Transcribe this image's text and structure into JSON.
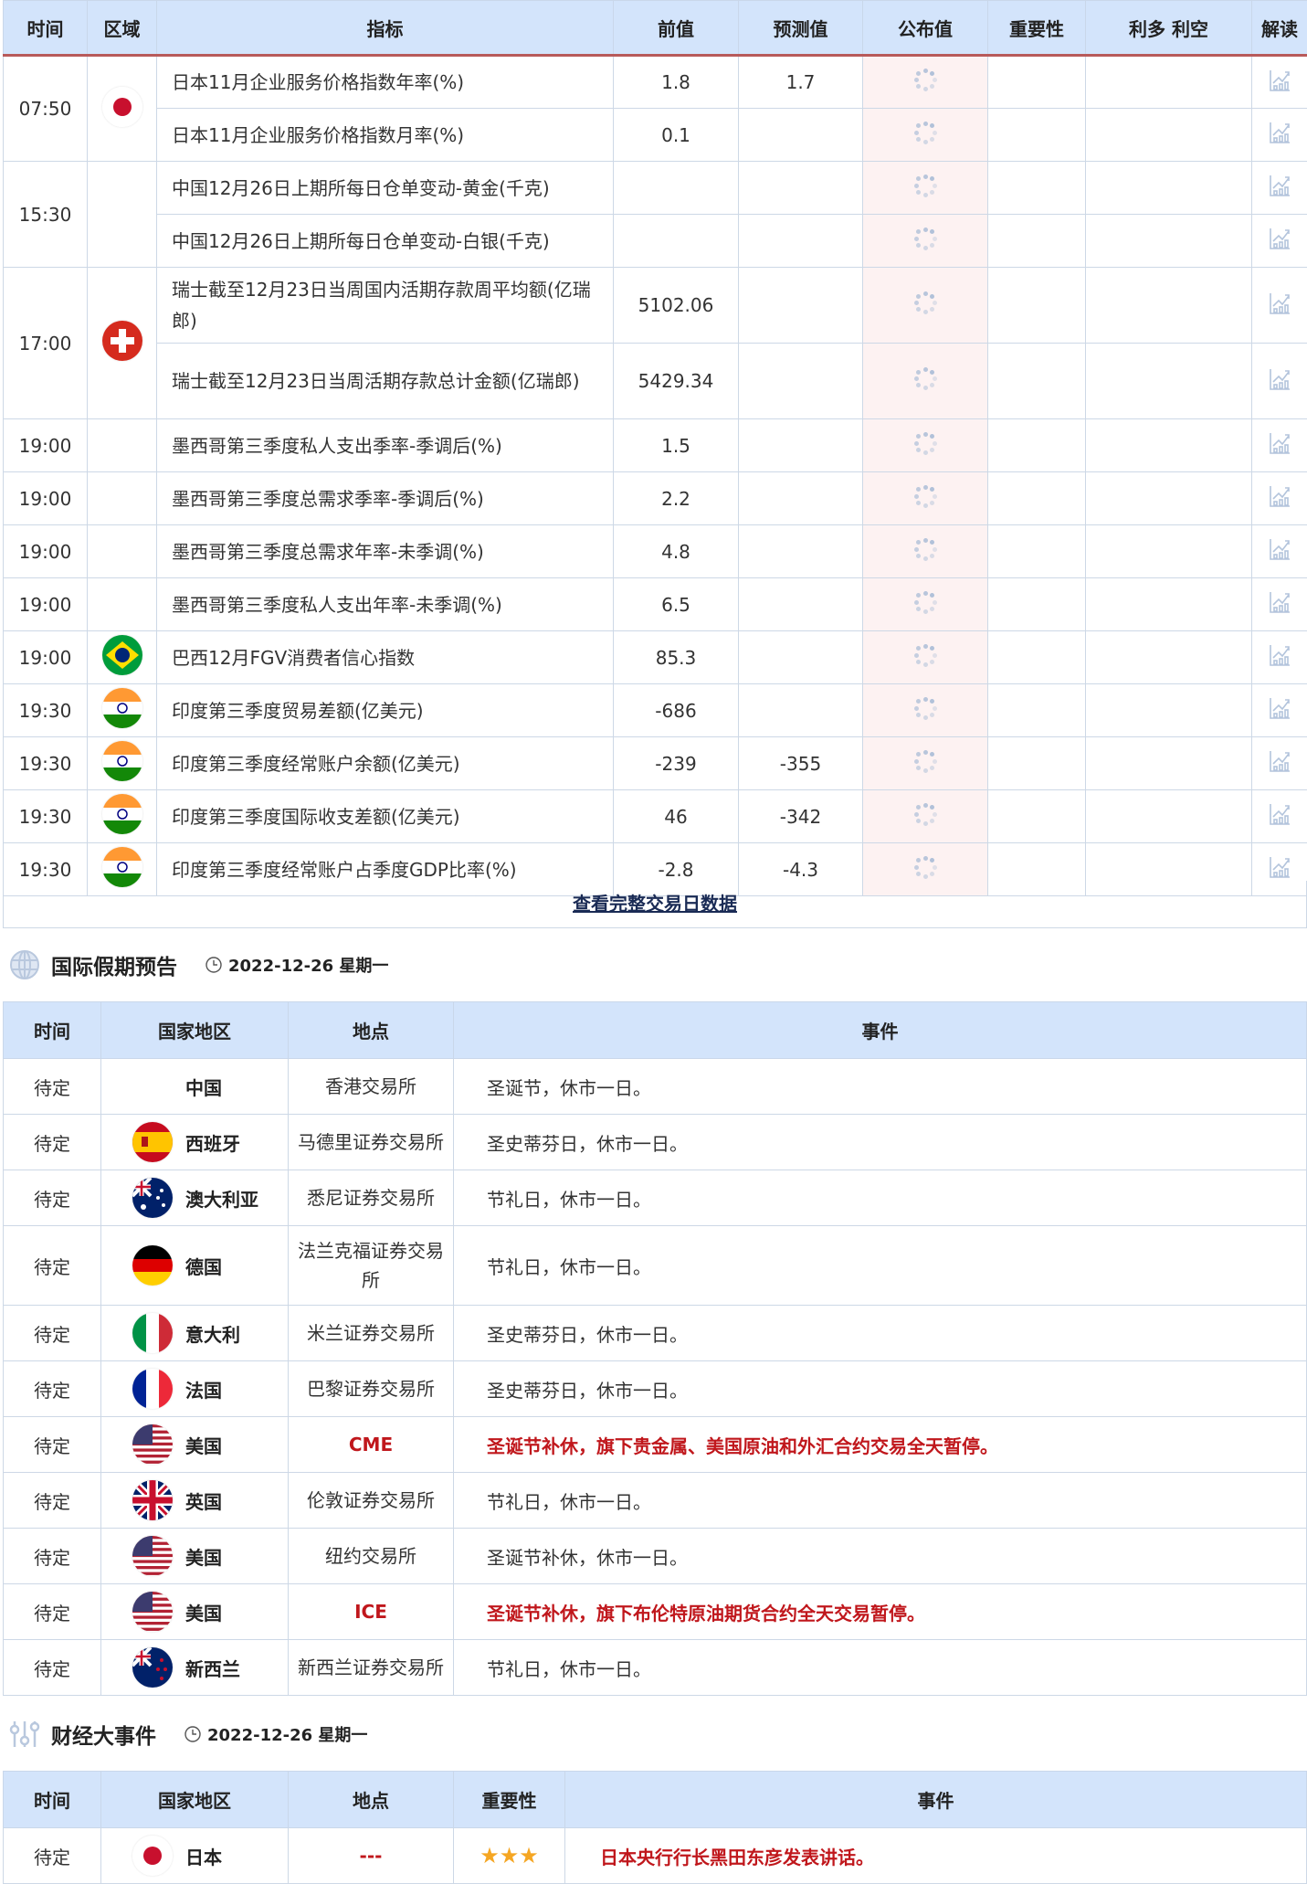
{
  "calendar": {
    "headers": [
      "时间",
      "区域",
      "指标",
      "前值",
      "预测值",
      "公布值",
      "重要性",
      "利多 利空",
      "解读"
    ],
    "groups": [
      {
        "time": "07:50",
        "flag": "japan",
        "rows": [
          {
            "indicator": "日本11月企业服务价格指数年率(%)",
            "prev": "1.8",
            "forecast": "1.7"
          },
          {
            "indicator": "日本11月企业服务价格指数月率(%)",
            "prev": "0.1",
            "forecast": ""
          }
        ]
      },
      {
        "time": "15:30",
        "flag": "",
        "rows": [
          {
            "indicator": "中国12月26日上期所每日仓单变动-黄金(千克)",
            "prev": "",
            "forecast": ""
          },
          {
            "indicator": "中国12月26日上期所每日仓单变动-白银(千克)",
            "prev": "",
            "forecast": ""
          }
        ]
      },
      {
        "time": "17:00",
        "flag": "switzerland",
        "rows": [
          {
            "indicator": "瑞士截至12月23日当周国内活期存款周平均额(亿瑞郎)",
            "prev": "5102.06",
            "forecast": ""
          },
          {
            "indicator": "瑞士截至12月23日当周活期存款总计金额(亿瑞郎)",
            "prev": "5429.34",
            "forecast": ""
          }
        ]
      },
      {
        "time": "19:00",
        "flag": "",
        "rows": [
          {
            "indicator": "墨西哥第三季度私人支出季率-季调后(%)",
            "prev": "1.5",
            "forecast": ""
          }
        ]
      },
      {
        "time": "19:00",
        "flag": "",
        "rows": [
          {
            "indicator": "墨西哥第三季度总需求季率-季调后(%)",
            "prev": "2.2",
            "forecast": ""
          }
        ]
      },
      {
        "time": "19:00",
        "flag": "",
        "rows": [
          {
            "indicator": "墨西哥第三季度总需求年率-未季调(%)",
            "prev": "4.8",
            "forecast": ""
          }
        ]
      },
      {
        "time": "19:00",
        "flag": "",
        "rows": [
          {
            "indicator": "墨西哥第三季度私人支出年率-未季调(%)",
            "prev": "6.5",
            "forecast": ""
          }
        ]
      },
      {
        "time": "19:00",
        "flag": "brazil",
        "rows": [
          {
            "indicator": "巴西12月FGV消费者信心指数",
            "prev": "85.3",
            "forecast": ""
          }
        ]
      },
      {
        "time": "19:30",
        "flag": "india",
        "rows": [
          {
            "indicator": "印度第三季度贸易差额(亿美元)",
            "prev": "-686",
            "forecast": ""
          }
        ]
      },
      {
        "time": "19:30",
        "flag": "india",
        "rows": [
          {
            "indicator": "印度第三季度经常账户余额(亿美元)",
            "prev": "-239",
            "forecast": "-355"
          }
        ]
      },
      {
        "time": "19:30",
        "flag": "india",
        "rows": [
          {
            "indicator": "印度第三季度国际收支差额(亿美元)",
            "prev": "46",
            "forecast": "-342"
          }
        ]
      },
      {
        "time": "19:30",
        "flag": "india",
        "rows": [
          {
            "indicator": "印度第三季度经常账户占季度GDP比率(%)",
            "prev": "-2.8",
            "forecast": "-4.3"
          }
        ]
      }
    ],
    "view_all_link": "查看完整交易日数据"
  },
  "holidays": {
    "title": "国际假期预告",
    "date": "2022-12-26 星期一",
    "headers": [
      "时间",
      "国家地区",
      "地点",
      "事件"
    ],
    "rows": [
      {
        "time": "待定",
        "flag": "",
        "country": "中国",
        "place": "香港交易所",
        "event": "圣诞节，休市一日。",
        "highlight": false
      },
      {
        "time": "待定",
        "flag": "spain",
        "country": "西班牙",
        "place": "马德里证券交易所",
        "event": "圣史蒂芬日，休市一日。",
        "highlight": false
      },
      {
        "time": "待定",
        "flag": "australia",
        "country": "澳大利亚",
        "place": "悉尼证券交易所",
        "event": "节礼日，休市一日。",
        "highlight": false
      },
      {
        "time": "待定",
        "flag": "germany",
        "country": "德国",
        "place": "法兰克福证券交易所",
        "event": "节礼日，休市一日。",
        "highlight": false
      },
      {
        "time": "待定",
        "flag": "italy",
        "country": "意大利",
        "place": "米兰证券交易所",
        "event": "圣史蒂芬日，休市一日。",
        "highlight": false
      },
      {
        "time": "待定",
        "flag": "france",
        "country": "法国",
        "place": "巴黎证券交易所",
        "event": "圣史蒂芬日，休市一日。",
        "highlight": false
      },
      {
        "time": "待定",
        "flag": "usa",
        "country": "美国",
        "place": "CME",
        "event": "圣诞节补休，旗下贵金属、美国原油和外汇合约交易全天暂停。",
        "highlight": true
      },
      {
        "time": "待定",
        "flag": "uk",
        "country": "英国",
        "place": "伦敦证券交易所",
        "event": "节礼日，休市一日。",
        "highlight": false
      },
      {
        "time": "待定",
        "flag": "usa",
        "country": "美国",
        "place": "纽约交易所",
        "event": "圣诞节补休，休市一日。",
        "highlight": false
      },
      {
        "time": "待定",
        "flag": "usa",
        "country": "美国",
        "place": "ICE",
        "event": "圣诞节补休，旗下布伦特原油期货合约全天交易暂停。",
        "highlight": true
      },
      {
        "time": "待定",
        "flag": "newzealand",
        "country": "新西兰",
        "place": "新西兰证券交易所",
        "event": "节礼日，休市一日。",
        "highlight": false
      }
    ]
  },
  "events": {
    "title": "财经大事件",
    "date": "2022-12-26 星期一",
    "headers": [
      "时间",
      "国家地区",
      "地点",
      "重要性",
      "事件"
    ],
    "rows": [
      {
        "time": "待定",
        "flag": "japan",
        "country": "日本",
        "place": "---",
        "stars": 3,
        "event": "日本央行行长黑田东彦发表讲话。"
      }
    ]
  },
  "colors": {
    "header_bg": "#d3e4fb",
    "accent_red": "#c0171c",
    "header_rule": "#b85a5a",
    "actual_bg": "#fdf2f2",
    "star": "#f5a623"
  }
}
